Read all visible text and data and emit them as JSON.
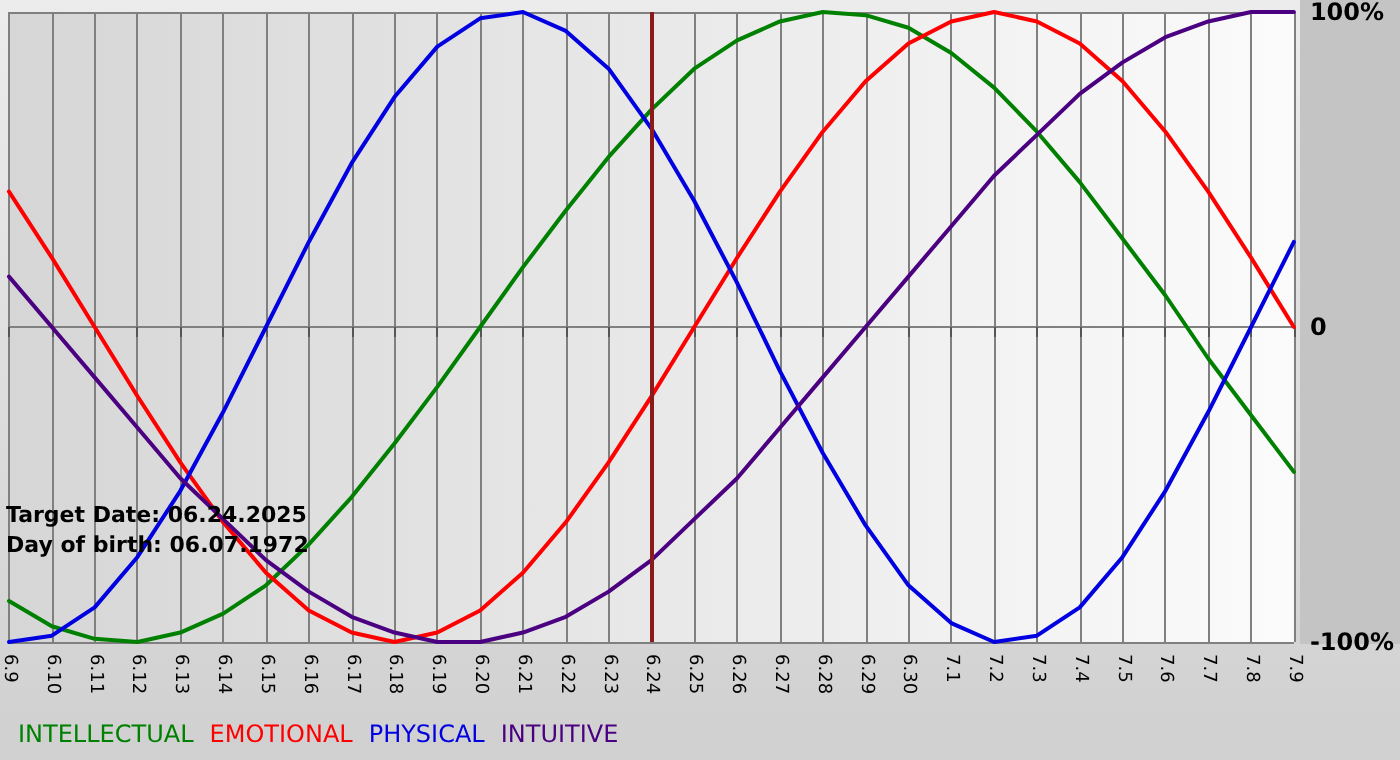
{
  "chart_data": {
    "type": "line",
    "categories": [
      "6.9",
      "6.10",
      "6.11",
      "6.12",
      "6.13",
      "6.14",
      "6.15",
      "6.16",
      "6.17",
      "6.18",
      "6.19",
      "6.20",
      "6.21",
      "6.22",
      "6.23",
      "6.24",
      "6.25",
      "6.26",
      "6.27",
      "6.28",
      "6.29",
      "6.30",
      "7.1",
      "7.2",
      "7.3",
      "7.4",
      "7.5",
      "7.6",
      "7.7",
      "7.8",
      "7.9"
    ],
    "series": [
      {
        "name": "INTELLECTUAL",
        "color": "#008000",
        "values": [
          -87,
          -95,
          -99,
          -100,
          -97,
          -91,
          -82,
          -69,
          -54,
          -37,
          -19,
          0,
          19,
          37,
          54,
          69,
          82,
          91,
          97,
          100,
          99,
          95,
          87,
          76,
          62,
          46,
          28,
          10,
          -10,
          -28,
          -46
        ]
      },
      {
        "name": "EMOTIONAL",
        "color": "#ff0000",
        "values": [
          43,
          22,
          0,
          -22,
          -43,
          -62,
          -78,
          -90,
          -97,
          -100,
          -97,
          -90,
          -78,
          -62,
          -43,
          -22,
          0,
          22,
          43,
          62,
          78,
          90,
          97,
          100,
          97,
          90,
          78,
          62,
          43,
          22,
          0
        ]
      },
      {
        "name": "PHYSICAL",
        "color": "#0000e0",
        "values": [
          -100,
          -98,
          -89,
          -73,
          -52,
          -27,
          0,
          27,
          52,
          73,
          89,
          98,
          100,
          94,
          82,
          63,
          40,
          14,
          -14,
          -40,
          -63,
          -82,
          -94,
          -100,
          -98,
          -89,
          -73,
          -52,
          -27,
          0,
          27
        ]
      },
      {
        "name": "INTUITIVE",
        "color": "#4b0082",
        "values": [
          16,
          0,
          -16,
          -32,
          -48,
          -61,
          -74,
          -84,
          -92,
          -97,
          -100,
          -100,
          -97,
          -92,
          -84,
          -74,
          -61,
          -48,
          -32,
          -16,
          0,
          16,
          32,
          48,
          61,
          74,
          84,
          92,
          97,
          100,
          100
        ]
      }
    ],
    "ylim": [
      -100,
      100
    ],
    "yticks": [
      {
        "value": -100,
        "label": "-100%"
      },
      0,
      {
        "value": 100,
        "label": "100%"
      }
    ],
    "ref_lines": [
      {
        "axis": "x",
        "value": "6.24",
        "color": "#8b1a1a"
      }
    ],
    "annotations": [
      "Target Date: 06.24.2025",
      "Day of birth: 06.07.1972"
    ],
    "grid": true,
    "legend": "bottom left",
    "marker": "none",
    "line_style": "solid"
  }
}
